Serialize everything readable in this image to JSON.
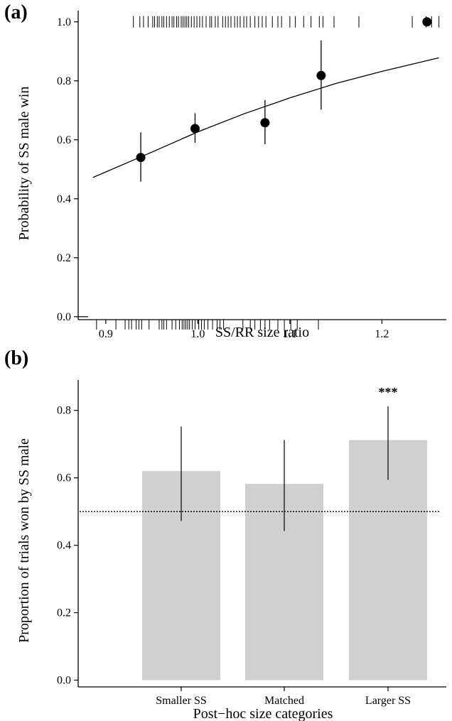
{
  "chart_data": [
    {
      "panel": "(a)",
      "type": "scatter",
      "xlabel": "SS/RR size ratio",
      "ylabel": "Probability of SS male win",
      "xlim": [
        0.87,
        1.27
      ],
      "ylim": [
        -0.01,
        1.05
      ],
      "xticks": [
        "0.9",
        "1.0",
        "1.1",
        "1.2"
      ],
      "yticks": [
        "0.0",
        "0.2",
        "0.4",
        "0.6",
        "0.8",
        "1.0"
      ],
      "points": [
        {
          "x": 0.938,
          "y": 0.54,
          "lower": 0.458,
          "upper": 0.625
        },
        {
          "x": 0.997,
          "y": 0.638,
          "lower": 0.59,
          "upper": 0.69
        },
        {
          "x": 1.073,
          "y": 0.658,
          "lower": 0.585,
          "upper": 0.735
        },
        {
          "x": 1.134,
          "y": 0.818,
          "lower": 0.702,
          "upper": 0.937
        },
        {
          "x": 1.249,
          "y": 1.0
        }
      ],
      "fit_line": [
        {
          "x": 0.886,
          "y": 0.472
        },
        {
          "x": 0.95,
          "y": 0.558
        },
        {
          "x": 1.0,
          "y": 0.627
        },
        {
          "x": 1.05,
          "y": 0.688
        },
        {
          "x": 1.1,
          "y": 0.742
        },
        {
          "x": 1.15,
          "y": 0.791
        },
        {
          "x": 1.2,
          "y": 0.832
        },
        {
          "x": 1.262,
          "y": 0.878
        }
      ],
      "rug_wins": [
        0.93,
        0.937,
        0.941,
        0.946,
        0.951,
        0.953,
        0.956,
        0.958,
        0.961,
        0.963,
        0.966,
        0.969,
        0.972,
        0.974,
        0.977,
        0.979,
        0.982,
        0.984,
        0.986,
        0.988,
        0.99,
        0.993,
        0.996,
        0.999,
        1.002,
        1.005,
        1.009,
        1.013,
        1.015,
        1.019,
        1.022,
        1.027,
        1.03,
        1.033,
        1.036,
        1.04,
        1.043,
        1.046,
        1.05,
        1.053,
        1.057,
        1.062,
        1.066,
        1.07,
        1.074,
        1.081,
        1.087,
        1.091,
        1.1,
        1.106,
        1.115,
        1.123,
        1.132,
        1.136,
        1.148,
        1.175,
        1.233,
        1.248,
        1.254,
        1.262
      ],
      "rug_losses": [
        0.89,
        0.911,
        0.921,
        0.925,
        0.928,
        0.933,
        0.936,
        0.939,
        0.947,
        0.958,
        0.961,
        0.963,
        0.966,
        0.972,
        0.976,
        0.98,
        0.983,
        0.985,
        0.987,
        0.989,
        0.991,
        0.994,
        0.997,
        1.001,
        1.004,
        1.007,
        1.011,
        1.016,
        1.021,
        1.024,
        1.028,
        1.049,
        1.057,
        1.062,
        1.068,
        1.073,
        1.078,
        1.087,
        1.094,
        1.101,
        1.108,
        1.131
      ]
    },
    {
      "panel": "(b)",
      "type": "bar",
      "xlabel": "Post−hoc size categories",
      "ylabel": "Proportion of trials won by SS male",
      "ylim": [
        -0.02,
        0.89
      ],
      "yticks": [
        "0.0",
        "0.2",
        "0.4",
        "0.6",
        "0.8"
      ],
      "categories": [
        "Smaller SS",
        "Matched",
        "Larger SS"
      ],
      "values": [
        0.62,
        0.582,
        0.712
      ],
      "lower": [
        0.472,
        0.442,
        0.594
      ],
      "upper": [
        0.752,
        0.712,
        0.812
      ],
      "annotations": [
        "",
        "",
        "***"
      ],
      "reference_line": 0.5
    }
  ]
}
